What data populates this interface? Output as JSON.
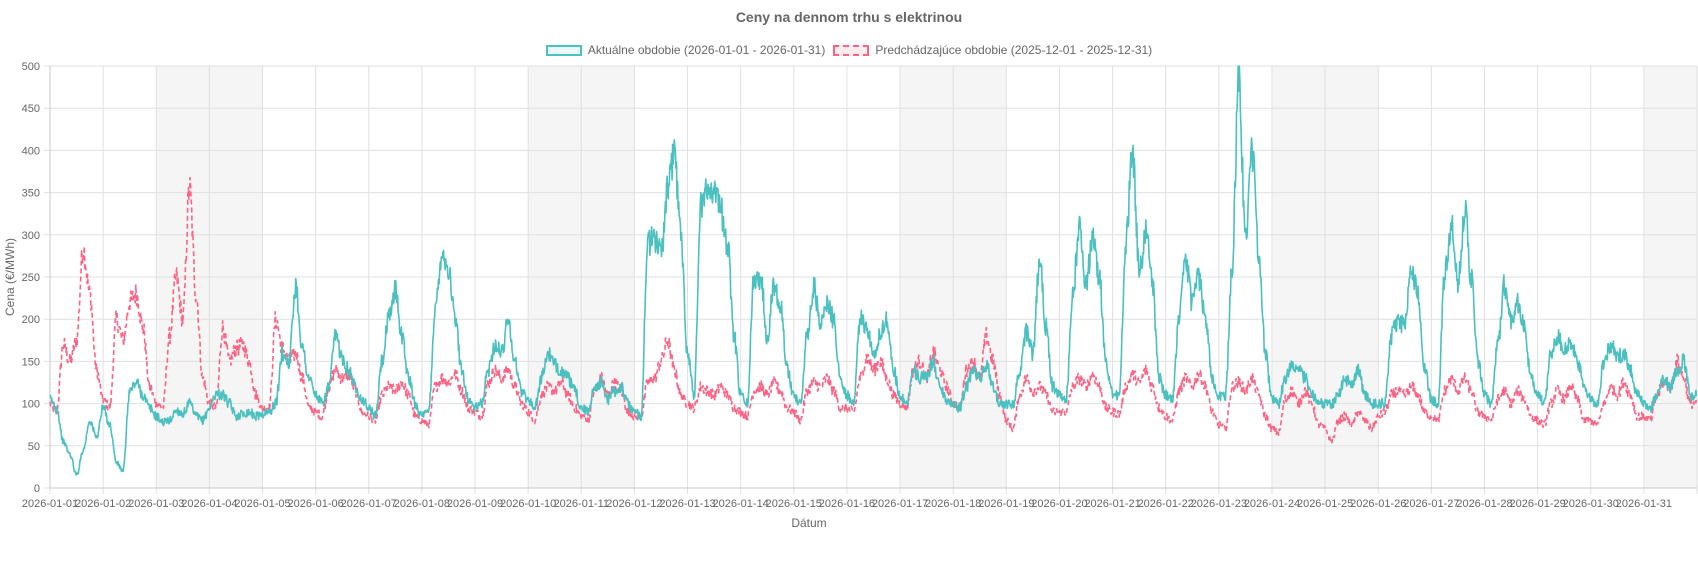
{
  "chart_data": {
    "type": "line",
    "title": "Ceny na dennom trhu s elektrinou",
    "xlabel": "Dátum",
    "ylabel": "Cena (€/MWh)",
    "ylim": [
      0,
      500
    ],
    "y_ticks": [
      "0",
      "50",
      "100",
      "150",
      "200",
      "250",
      "300",
      "350",
      "400",
      "450",
      "500"
    ],
    "grid": true,
    "legend_position": "top-center",
    "x_ticks": [
      "2026-01-01",
      "2026-01-02",
      "2026-01-03",
      "2026-01-04",
      "2026-01-05",
      "2026-01-06",
      "2026-01-07",
      "2026-01-08",
      "2026-01-09",
      "2026-01-10",
      "2026-01-11",
      "2026-01-12",
      "2026-01-13",
      "2026-01-14",
      "2026-01-15",
      "2026-01-16",
      "2026-01-17",
      "2026-01-18",
      "2026-01-19",
      "2026-01-20",
      "2026-01-21",
      "2026-01-22",
      "2026-01-23",
      "2026-01-24",
      "2026-01-25",
      "2026-01-26",
      "2026-01-27",
      "2026-01-28",
      "2026-01-29",
      "2026-01-30",
      "2026-01-31"
    ],
    "weekend_days": [
      "2026-01-03",
      "2026-01-04",
      "2026-01-10",
      "2026-01-11",
      "2026-01-17",
      "2026-01-18",
      "2026-01-24",
      "2026-01-25",
      "2026-01-31"
    ],
    "weekend_shade_color": "#f5f5f5",
    "sample_interval_hours": 3,
    "series": [
      {
        "name": "Aktuálne obdobie (2026-01-01 - 2026-01-31)",
        "color": "#4bc0c0",
        "dash": false,
        "values": [
          105,
          95,
          55,
          40,
          15,
          45,
          80,
          60,
          95,
          75,
          30,
          20,
          115,
          125,
          110,
          95,
          85,
          78,
          80,
          92,
          88,
          100,
          85,
          80,
          95,
          112,
          110,
          100,
          85,
          88,
          90,
          85,
          88,
          90,
          100,
          160,
          150,
          240,
          165,
          130,
          110,
          100,
          120,
          180,
          155,
          140,
          120,
          105,
          95,
          85,
          150,
          200,
          235,
          180,
          130,
          100,
          85,
          90,
          210,
          280,
          260,
          200,
          140,
          105,
          95,
          100,
          140,
          170,
          160,
          200,
          150,
          115,
          105,
          95,
          130,
          160,
          145,
          140,
          130,
          115,
          95,
          90,
          120,
          125,
          105,
          115,
          120,
          100,
          90,
          85,
          290,
          295,
          280,
          350,
          400,
          300,
          160,
          110,
          340,
          350,
          360,
          330,
          290,
          180,
          110,
          100,
          250,
          250,
          180,
          240,
          220,
          140,
          110,
          100,
          180,
          240,
          190,
          220,
          200,
          130,
          110,
          100,
          200,
          190,
          160,
          180,
          200,
          140,
          110,
          100,
          140,
          130,
          130,
          150,
          120,
          105,
          100,
          95,
          120,
          140,
          130,
          145,
          120,
          100,
          100,
          98,
          140,
          185,
          160,
          270,
          190,
          120,
          110,
          105,
          230,
          310,
          240,
          300,
          250,
          150,
          110,
          110,
          290,
          400,
          260,
          300,
          240,
          130,
          110,
          105,
          200,
          270,
          220,
          250,
          200,
          130,
          110,
          110,
          260,
          490,
          300,
          400,
          280,
          160,
          105,
          100,
          130,
          150,
          140,
          130,
          110,
          100,
          100,
          100,
          110,
          130,
          120,
          140,
          110,
          100,
          100,
          100,
          180,
          200,
          190,
          260,
          230,
          140,
          105,
          100,
          250,
          310,
          240,
          330,
          250,
          150,
          110,
          100,
          170,
          240,
          200,
          220,
          190,
          130,
          110,
          100,
          160,
          180,
          165,
          170,
          150,
          120,
          105,
          100,
          150,
          170,
          155,
          160,
          140,
          110,
          100,
          95,
          110,
          130,
          120,
          140,
          150,
          110
        ]
      },
      {
        "name": "Predchádzajúce obdobie (2025-12-01 - 2025-12-31)",
        "color": "#ff6384",
        "dash": true,
        "values": [
          100,
          90,
          170,
          150,
          175,
          285,
          230,
          140,
          105,
          95,
          200,
          175,
          220,
          230,
          190,
          120,
          100,
          95,
          180,
          250,
          200,
          355,
          230,
          130,
          100,
          95,
          190,
          150,
          165,
          170,
          150,
          110,
          95,
          95,
          200,
          165,
          150,
          160,
          130,
          95,
          90,
          85,
          120,
          140,
          130,
          135,
          115,
          90,
          85,
          80,
          110,
          120,
          115,
          125,
          110,
          85,
          80,
          75,
          120,
          130,
          125,
          135,
          115,
          95,
          90,
          85,
          125,
          140,
          130,
          140,
          120,
          100,
          90,
          80,
          110,
          120,
          115,
          125,
          110,
          95,
          85,
          80,
          115,
          130,
          110,
          125,
          115,
          90,
          85,
          85,
          125,
          130,
          150,
          175,
          140,
          110,
          100,
          95,
          120,
          115,
          110,
          120,
          110,
          95,
          90,
          85,
          115,
          120,
          110,
          125,
          115,
          95,
          90,
          80,
          115,
          125,
          120,
          130,
          115,
          95,
          95,
          90,
          130,
          155,
          140,
          150,
          130,
          110,
          100,
          95,
          140,
          150,
          130,
          160,
          140,
          120,
          100,
          95,
          140,
          150,
          130,
          180,
          150,
          110,
          80,
          70,
          110,
          130,
          115,
          120,
          110,
          90,
          90,
          90,
          120,
          130,
          120,
          135,
          120,
          95,
          90,
          88,
          120,
          135,
          125,
          140,
          120,
          95,
          85,
          80,
          115,
          130,
          120,
          135,
          120,
          90,
          75,
          70,
          120,
          125,
          115,
          130,
          110,
          85,
          70,
          65,
          105,
          115,
          100,
          115,
          100,
          75,
          70,
          55,
          80,
          85,
          75,
          90,
          80,
          70,
          85,
          90,
          110,
          115,
          110,
          120,
          110,
          90,
          85,
          80,
          115,
          130,
          115,
          130,
          115,
          90,
          85,
          80,
          105,
          115,
          100,
          115,
          105,
          85,
          80,
          75,
          100,
          115,
          105,
          120,
          105,
          80,
          80,
          75,
          100,
          120,
          110,
          125,
          110,
          85,
          85,
          80,
          110,
          125,
          120,
          150,
          130,
          100
        ]
      }
    ]
  }
}
